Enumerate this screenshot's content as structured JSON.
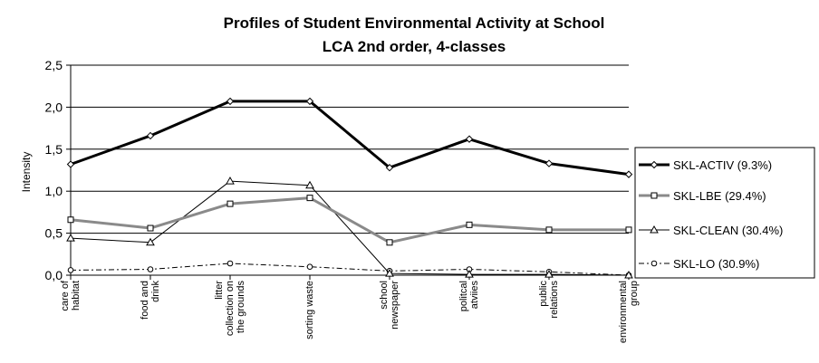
{
  "chart_data": {
    "type": "line",
    "title": "Profiles of Student Environmental Activity at School",
    "subtitle": "LCA 2nd order, 4-classes",
    "xlabel": "",
    "ylabel": "Intensity",
    "ylim": [
      0,
      2.5
    ],
    "yticks": [
      "0,0",
      "0,5",
      "1,0",
      "1,5",
      "2,0",
      "2,5"
    ],
    "ytick_values": [
      0,
      0.5,
      1.0,
      1.5,
      2.0,
      2.5
    ],
    "grid": true,
    "legend_position": "right",
    "categories": [
      [
        "care of",
        "habitat"
      ],
      [
        "food and",
        "drink"
      ],
      [
        "litter",
        "collection on",
        "the grounds"
      ],
      [
        "sorting waste"
      ],
      [
        "school",
        "newspaper"
      ],
      [
        "politcal",
        "atviies"
      ],
      [
        "public",
        "relations"
      ],
      [
        "environmental",
        "group"
      ]
    ],
    "series": [
      {
        "name": "SKL-ACTIV (9.3%)",
        "values": [
          1.32,
          1.66,
          2.07,
          2.07,
          1.28,
          1.62,
          1.33,
          1.2
        ],
        "color": "#000000",
        "marker": "diamond",
        "style": "thick"
      },
      {
        "name": "SKL-LBE (29.4%)",
        "values": [
          0.66,
          0.56,
          0.85,
          0.92,
          0.39,
          0.6,
          0.54,
          0.54
        ],
        "color": "#808080",
        "marker": "square",
        "style": "gray"
      },
      {
        "name": "SKL-CLEAN (30.4%)",
        "values": [
          0.44,
          0.39,
          1.12,
          1.07,
          0.02,
          0.01,
          0.01,
          0.0
        ],
        "color": "#000000",
        "marker": "triangle",
        "style": "thin"
      },
      {
        "name": "SKL-LO (30.9%)",
        "values": [
          0.06,
          0.07,
          0.14,
          0.1,
          0.05,
          0.07,
          0.04,
          0.0
        ],
        "color": "#000000",
        "marker": "circle",
        "style": "dashdot"
      }
    ]
  }
}
